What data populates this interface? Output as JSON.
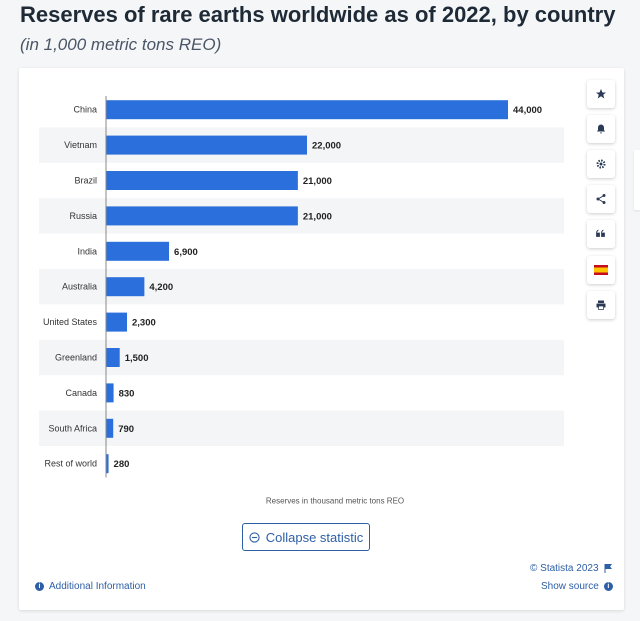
{
  "header": {
    "title": "Reserves of rare earths worldwide as of 2022, by country",
    "subtitle": "(in 1,000 metric tons REO)"
  },
  "chart_data": {
    "type": "bar",
    "orientation": "horizontal",
    "categories": [
      "China",
      "Vietnam",
      "Brazil",
      "Russia",
      "India",
      "Australia",
      "United States",
      "Greenland",
      "Canada",
      "South Africa",
      "Rest of world"
    ],
    "values": [
      44000,
      22000,
      21000,
      21000,
      6900,
      4200,
      2300,
      1500,
      830,
      790,
      280
    ],
    "value_labels": [
      "44,000",
      "22,000",
      "21,000",
      "21,000",
      "6,900",
      "4,200",
      "2,300",
      "1,500",
      "830",
      "790",
      "280"
    ],
    "xlabel": "Reserves in thousand metric tons REO",
    "ylabel": "",
    "xlim": [
      0,
      48000
    ],
    "bar_color": "#2a6fdb",
    "grid": false,
    "alternating_row_shading": true
  },
  "sidebar_tools": {
    "icons": [
      "star-icon",
      "bell-icon",
      "gear-icon",
      "share-icon",
      "quote-icon",
      "spain-flag-icon",
      "print-icon"
    ]
  },
  "controls": {
    "collapse_label": "Collapse statistic"
  },
  "footer": {
    "additional_info": "Additional Information",
    "copyright": "© Statista 2023",
    "show_source": "Show source"
  },
  "colors": {
    "accent": "#2d5fa6",
    "bar": "#2a6fdb"
  }
}
